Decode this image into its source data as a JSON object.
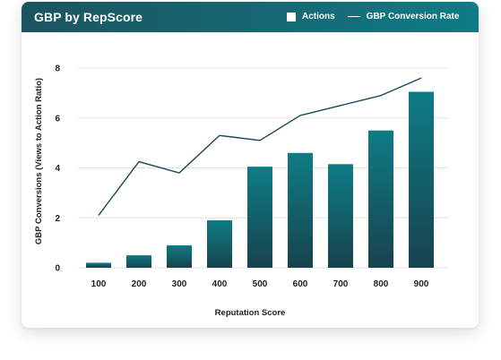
{
  "header": {
    "title": "GBP by RepScore",
    "legend_actions": "Actions",
    "legend_rate": "GBP Conversion Rate"
  },
  "colors": {
    "header_start": "#1a5560",
    "header_end": "#0e7c86",
    "bar_top": "#0e7c86",
    "bar_bottom": "#17434d",
    "line": "#174a56"
  },
  "chart_data": {
    "type": "bar",
    "categories": [
      "100",
      "200",
      "300",
      "400",
      "500",
      "600",
      "700",
      "800",
      "900"
    ],
    "series": [
      {
        "name": "Actions",
        "type": "bar",
        "values": [
          0.2,
          0.5,
          0.9,
          1.9,
          4.05,
          4.6,
          4.15,
          5.5,
          7.05
        ]
      },
      {
        "name": "GBP Conversion Rate",
        "type": "line",
        "values": [
          2.1,
          4.25,
          3.8,
          5.3,
          5.1,
          6.1,
          6.5,
          6.9,
          7.6
        ]
      }
    ],
    "title": "GBP by RepScore",
    "xlabel": "Reputation Score",
    "ylabel": "GBP Conversions (Views to Action Ratio)",
    "ylim": [
      0,
      8
    ],
    "yticks": [
      0,
      2,
      4,
      6,
      8
    ],
    "grid": true,
    "legend_position": "top-right"
  }
}
